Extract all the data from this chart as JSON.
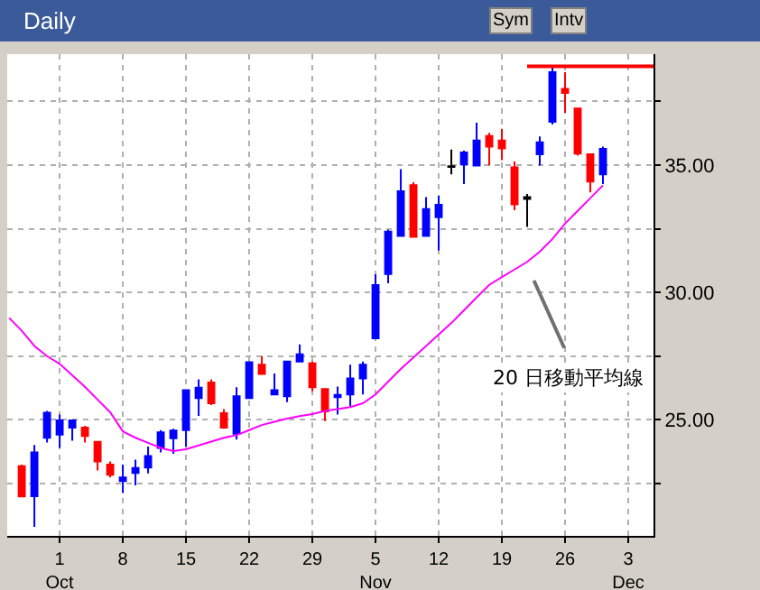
{
  "chart_data": {
    "type": "candlestick",
    "title": "Daily",
    "categories": [
      null,
      null,
      null,
      null,
      "1\nOct",
      null,
      null,
      null,
      null,
      "8",
      null,
      null,
      null,
      null,
      "15",
      null,
      null,
      null,
      null,
      "22",
      null,
      null,
      null,
      null,
      "29",
      null,
      null,
      null,
      null,
      "5\nNov",
      null,
      null,
      null,
      null,
      "12",
      null,
      null,
      null,
      null,
      "19",
      null,
      null,
      null,
      null,
      "26",
      null,
      null,
      null,
      null,
      "3\nDec",
      null,
      null
    ],
    "ylim": [
      20.45,
      39.35
    ],
    "yticks": [
      {
        "value": 22.5,
        "label": null
      },
      {
        "value": 25,
        "label": "25.00"
      },
      {
        "value": 27.5,
        "label": null
      },
      {
        "value": 30,
        "label": "30.00"
      },
      {
        "value": 32.5,
        "label": null
      },
      {
        "value": 35,
        "label": "35.00"
      },
      {
        "value": 37.5,
        "label": null
      }
    ],
    "grid": true,
    "series": [
      {
        "ohlc": [
          null,
          [
            23.18,
            23.25,
            21.98,
            22.0
          ],
          [
            22.01,
            24.02,
            20.8,
            23.72
          ],
          [
            24.3,
            25.35,
            24.11,
            25.28
          ],
          [
            24.42,
            25.21,
            23.9,
            24.98
          ],
          [
            24.7,
            24.98,
            24.18,
            24.98
          ],
          [
            24.7,
            24.77,
            24.11,
            24.37
          ],
          [
            24.14,
            24.14,
            23.02,
            23.37
          ],
          [
            23.25,
            23.37,
            22.74,
            22.85
          ],
          [
            22.6,
            23.25,
            22.13,
            22.74
          ],
          [
            22.92,
            23.44,
            22.43,
            23.11
          ],
          [
            23.13,
            23.95,
            22.9,
            23.58
          ],
          [
            23.9,
            24.6,
            23.72,
            24.51
          ],
          [
            24.28,
            24.65,
            23.67,
            24.58
          ],
          [
            24.6,
            26.17,
            23.95,
            26.17
          ],
          [
            25.86,
            26.59,
            25.16,
            26.26
          ],
          [
            26.47,
            26.59,
            25.58,
            25.65
          ],
          [
            25.26,
            25.42,
            24.65,
            24.7
          ],
          [
            24.46,
            26.28,
            24.23,
            25.93
          ],
          [
            25.86,
            27.26,
            25.86,
            27.26
          ],
          [
            27.17,
            27.5,
            26.8,
            26.8
          ],
          [
            26.0,
            26.82,
            26.0,
            26.17
          ],
          [
            25.93,
            27.29,
            25.7,
            27.29
          ],
          [
            27.29,
            27.96,
            27.29,
            27.57
          ],
          [
            27.22,
            27.29,
            26.12,
            26.28
          ],
          [
            26.21,
            26.21,
            24.95,
            25.33
          ],
          [
            25.89,
            26.31,
            25.21,
            25.98
          ],
          [
            26.0,
            27.17,
            25.54,
            26.63
          ],
          [
            26.63,
            27.29,
            26.0,
            27.17
          ],
          [
            28.2,
            30.71,
            28.2,
            30.29
          ],
          [
            30.72,
            32.46,
            30.36,
            32.39
          ],
          [
            32.22,
            34.84,
            32.22,
            33.97
          ],
          [
            34.21,
            34.32,
            32.18,
            32.18
          ],
          [
            32.22,
            33.74,
            32.22,
            33.27
          ],
          [
            32.95,
            33.79,
            31.64,
            33.44
          ],
          [
            34.93,
            35.61,
            34.63,
            34.95
          ],
          [
            35.02,
            35.56,
            34.25,
            35.49
          ],
          [
            34.98,
            36.66,
            34.98,
            35.96
          ],
          [
            36.14,
            36.26,
            34.98,
            35.72
          ],
          [
            35.96,
            36.42,
            35.19,
            35.65
          ],
          [
            34.91,
            35.14,
            33.23,
            33.46
          ],
          [
            33.74,
            33.86,
            32.57,
            33.67
          ],
          [
            35.42,
            36.12,
            34.98,
            35.89
          ],
          [
            36.7,
            38.83,
            36.59,
            38.64
          ],
          [
            37.99,
            38.64,
            37.05,
            37.83
          ],
          [
            37.22,
            37.22,
            35.37,
            35.45
          ],
          [
            35.42,
            35.42,
            33.93,
            34.35
          ],
          [
            34.63,
            35.72,
            34.25,
            35.63
          ],
          null,
          null,
          null,
          null
        ],
        "colors": [
          null,
          "#ff0000",
          "#0000ff",
          "#0000ff",
          "#0000ff",
          "#0000ff",
          "#ff0000",
          "#ff0000",
          "#ff0000",
          "#0000ff",
          "#0000ff",
          "#0000ff",
          "#0000ff",
          "#0000ff",
          "#0000ff",
          "#0000ff",
          "#ff0000",
          "#ff0000",
          "#0000ff",
          "#0000ff",
          "#ff0000",
          "#0000ff",
          "#0000ff",
          "#0000ff",
          "#ff0000",
          "#ff0000",
          "#0000ff",
          "#0000ff",
          "#0000ff",
          "#0000ff",
          "#0000ff",
          "#0000ff",
          "#ff0000",
          "#0000ff",
          "#0000ff",
          "#000000",
          "#0000ff",
          "#0000ff",
          "#ff0000",
          "#ff0000",
          "#ff0000",
          "#000000",
          "#0000ff",
          "#0000ff",
          "#ff0000",
          "#ff0000",
          "#ff0000",
          "#0000ff",
          null,
          null,
          null,
          null
        ]
      },
      {
        "type": "line",
        "color": "#ff00ff",
        "values": [
          29.0,
          28.5,
          27.9,
          27.5,
          27.2,
          26.75,
          26.3,
          25.8,
          25.3,
          24.55,
          24.3,
          24.1,
          23.9,
          23.78,
          23.85,
          24.0,
          24.15,
          24.3,
          24.4,
          24.6,
          24.8,
          24.93,
          25.05,
          25.15,
          25.23,
          25.35,
          25.42,
          25.5,
          25.65,
          26.0,
          26.5,
          27.0,
          27.45,
          27.9,
          28.35,
          28.8,
          29.3,
          29.8,
          30.3,
          30.6,
          30.9,
          31.2,
          31.6,
          32.1,
          32.7,
          33.2,
          33.7,
          34.2,
          null,
          null,
          null,
          null
        ]
      },
      {
        "type": "line",
        "color": "#ff0000",
        "values": [
          null,
          null,
          null,
          null,
          null,
          null,
          null,
          null,
          null,
          null,
          null,
          null,
          null,
          null,
          null,
          null,
          null,
          null,
          null,
          null,
          null,
          null,
          null,
          null,
          null,
          null,
          null,
          null,
          null,
          null,
          null,
          null,
          null,
          null,
          null,
          null,
          null,
          null,
          null,
          null,
          null,
          38.87,
          38.87,
          38.87,
          38.87,
          38.87,
          38.87,
          38.87,
          38.87,
          38.87,
          38.87,
          38.87
        ]
      }
    ],
    "annotations": [
      "Sym",
      "Intv",
      "20 日移動平均線"
    ]
  }
}
